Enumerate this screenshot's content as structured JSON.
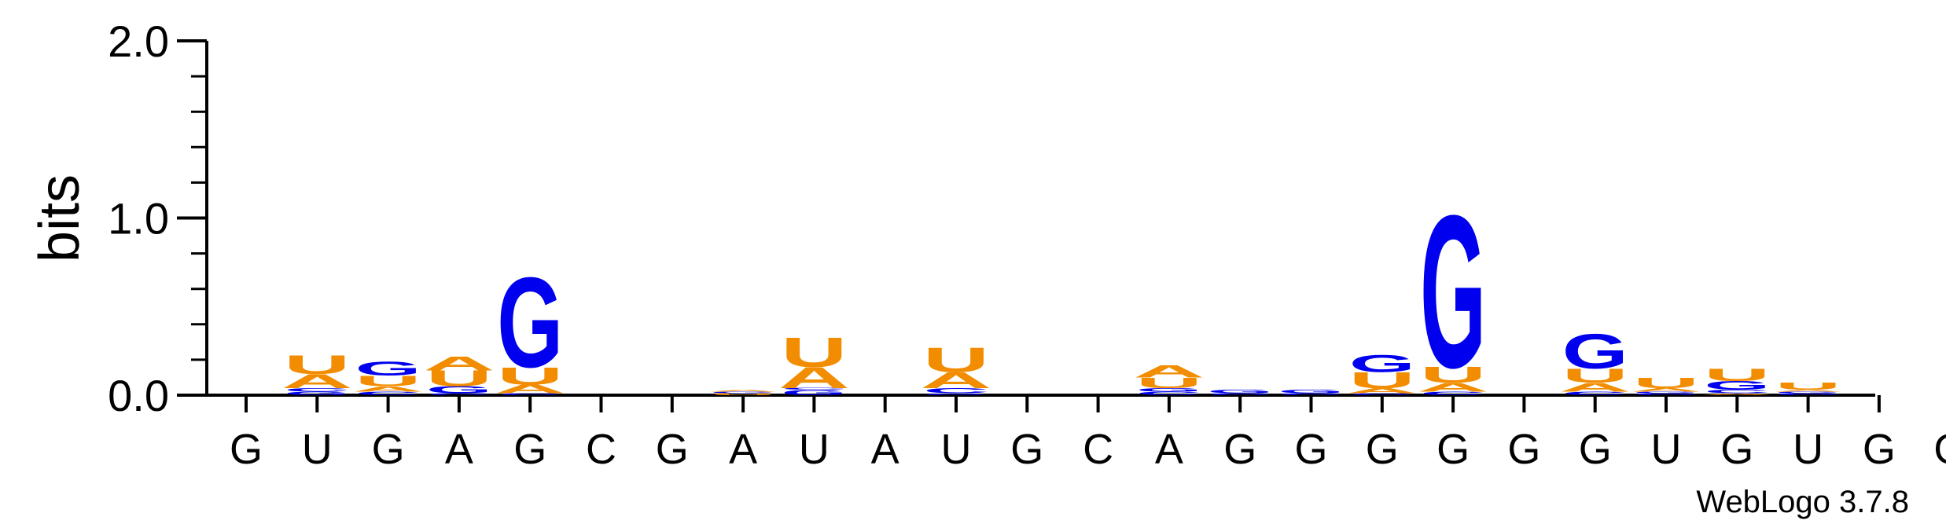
{
  "chart_data": {
    "type": "sequence-logo",
    "ylabel": "bits",
    "ylim": [
      0,
      2.0
    ],
    "y_ticks": [
      "0.0",
      "1.0",
      "2.0"
    ],
    "credit": "WebLogo 3.7.8",
    "colors": {
      "A": "#f28c00",
      "U": "#f28c00",
      "G": "#0000ee",
      "C": "#0000ee"
    },
    "positions": [
      {
        "label": "G",
        "stack": []
      },
      {
        "label": "U",
        "stack": [
          {
            "letter": "G",
            "bits": 0.02
          },
          {
            "letter": "C",
            "bits": 0.02
          },
          {
            "letter": "A",
            "bits": 0.08
          },
          {
            "letter": "U",
            "bits": 0.11
          }
        ]
      },
      {
        "label": "G",
        "stack": [
          {
            "letter": "C",
            "bits": 0.02
          },
          {
            "letter": "A",
            "bits": 0.03
          },
          {
            "letter": "U",
            "bits": 0.06
          },
          {
            "letter": "G",
            "bits": 0.08
          }
        ]
      },
      {
        "label": "A",
        "stack": [
          {
            "letter": "C",
            "bits": 0.01
          },
          {
            "letter": "G",
            "bits": 0.04
          },
          {
            "letter": "U",
            "bits": 0.09
          },
          {
            "letter": "A",
            "bits": 0.08
          }
        ]
      },
      {
        "label": "G",
        "stack": [
          {
            "letter": "C",
            "bits": 0.01
          },
          {
            "letter": "A",
            "bits": 0.05
          },
          {
            "letter": "U",
            "bits": 0.1
          },
          {
            "letter": "G",
            "bits": 0.52
          }
        ]
      },
      {
        "label": "C",
        "stack": []
      },
      {
        "label": "G",
        "stack": []
      },
      {
        "label": "A",
        "stack": [
          {
            "letter": "U",
            "bits": 0.01
          },
          {
            "letter": "G",
            "bits": 0.01
          },
          {
            "letter": "A",
            "bits": 0.01
          }
        ]
      },
      {
        "label": "U",
        "stack": [
          {
            "letter": "G",
            "bits": 0.03
          },
          {
            "letter": "C",
            "bits": 0.01
          },
          {
            "letter": "A",
            "bits": 0.12
          },
          {
            "letter": "U",
            "bits": 0.17
          }
        ]
      },
      {
        "label": "A",
        "stack": []
      },
      {
        "label": "U",
        "stack": [
          {
            "letter": "G",
            "bits": 0.01
          },
          {
            "letter": "C",
            "bits": 0.03
          },
          {
            "letter": "A",
            "bits": 0.09
          },
          {
            "letter": "U",
            "bits": 0.14
          }
        ]
      },
      {
        "label": "G",
        "stack": []
      },
      {
        "label": "C",
        "stack": []
      },
      {
        "label": "A",
        "stack": [
          {
            "letter": "C",
            "bits": 0.02
          },
          {
            "letter": "G",
            "bits": 0.02
          },
          {
            "letter": "U",
            "bits": 0.06
          },
          {
            "letter": "A",
            "bits": 0.07
          }
        ]
      },
      {
        "label": "G",
        "stack": [
          {
            "letter": "C",
            "bits": 0.01
          },
          {
            "letter": "G",
            "bits": 0.02
          }
        ]
      },
      {
        "label": "G",
        "stack": [
          {
            "letter": "C",
            "bits": 0.01
          },
          {
            "letter": "G",
            "bits": 0.02
          }
        ]
      },
      {
        "label": "G",
        "stack": [
          {
            "letter": "C",
            "bits": 0.01
          },
          {
            "letter": "A",
            "bits": 0.03
          },
          {
            "letter": "U",
            "bits": 0.09
          },
          {
            "letter": "G",
            "bits": 0.1
          }
        ]
      },
      {
        "label": "G",
        "stack": [
          {
            "letter": "C",
            "bits": 0.02
          },
          {
            "letter": "A",
            "bits": 0.05
          },
          {
            "letter": "U",
            "bits": 0.09
          },
          {
            "letter": "G",
            "bits": 0.88
          }
        ]
      },
      {
        "label": "G",
        "stack": []
      },
      {
        "label": "G",
        "stack": [
          {
            "letter": "C",
            "bits": 0.02
          },
          {
            "letter": "A",
            "bits": 0.05
          },
          {
            "letter": "U",
            "bits": 0.08
          },
          {
            "letter": "G",
            "bits": 0.2
          }
        ]
      },
      {
        "label": "U",
        "stack": [
          {
            "letter": "C",
            "bits": 0.01
          },
          {
            "letter": "G",
            "bits": 0.01
          },
          {
            "letter": "A",
            "bits": 0.02
          },
          {
            "letter": "U",
            "bits": 0.06
          }
        ]
      },
      {
        "label": "G",
        "stack": [
          {
            "letter": "A",
            "bits": 0.01
          },
          {
            "letter": "C",
            "bits": 0.02
          },
          {
            "letter": "G",
            "bits": 0.05
          },
          {
            "letter": "U",
            "bits": 0.07
          }
        ]
      },
      {
        "label": "U",
        "stack": [
          {
            "letter": "C",
            "bits": 0.01
          },
          {
            "letter": "G",
            "bits": 0.01
          },
          {
            "letter": "A",
            "bits": 0.01
          },
          {
            "letter": "U",
            "bits": 0.04
          }
        ]
      },
      {
        "label": "G",
        "stack": []
      },
      {
        "label": "G",
        "stack": []
      }
    ]
  }
}
